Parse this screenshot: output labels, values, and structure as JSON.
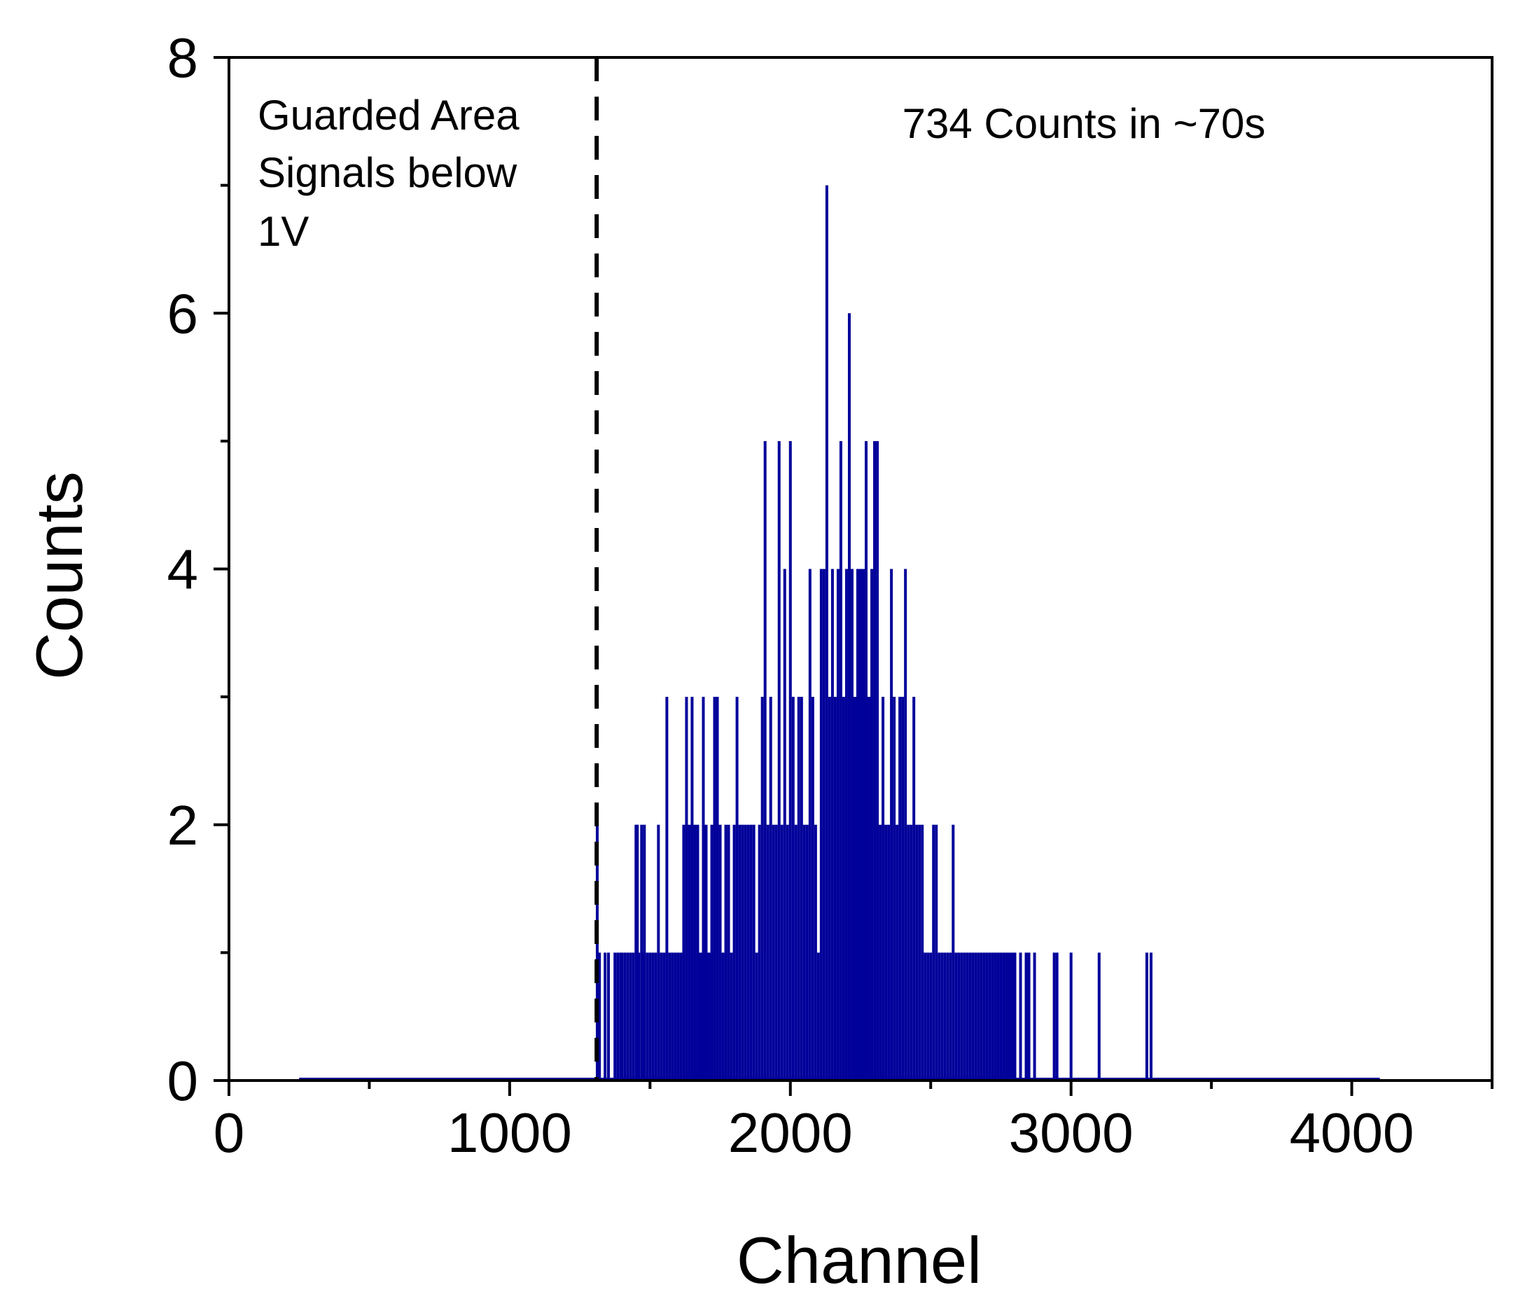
{
  "chart_data": {
    "type": "bar",
    "title": "",
    "xlabel": "Channel",
    "ylabel": "Counts",
    "xlim": [
      0,
      4500
    ],
    "ylim": [
      0,
      8
    ],
    "xticks": [
      "0",
      "1000",
      "2000",
      "3000",
      "4000"
    ],
    "yticks": [
      "0",
      "2",
      "4",
      "6",
      "8"
    ],
    "grid": false,
    "legend": "none",
    "series_color": "#00009A",
    "annotations": {
      "guarded_lines": [
        "Guarded Area",
        "Signals below",
        "1V"
      ],
      "total": "734 Counts in ~70s"
    },
    "threshold_channel": 1310,
    "baseline_range": [
      250,
      4100
    ],
    "series": [
      {
        "x": [
          1312,
          1315,
          1320,
          1330,
          1340,
          1352,
          1365,
          1375,
          1385,
          1395,
          1400,
          1410,
          1420,
          1430,
          1440,
          1450,
          1455,
          1460,
          1470,
          1475,
          1480,
          1490,
          1500,
          1510,
          1520,
          1530,
          1540,
          1550,
          1560,
          1570,
          1580,
          1590,
          1600,
          1610,
          1620,
          1630,
          1640,
          1650,
          1660,
          1670,
          1680,
          1690,
          1700,
          1710,
          1720,
          1730,
          1740,
          1750,
          1760,
          1770,
          1780,
          1790,
          1800,
          1810,
          1820,
          1830,
          1840,
          1850,
          1860,
          1870,
          1880,
          1890,
          1900,
          1910,
          1920,
          1930,
          1940,
          1950,
          1960,
          1970,
          1980,
          1990,
          2000,
          2010,
          2020,
          2030,
          2040,
          2050,
          2060,
          2070,
          2080,
          2090,
          2100,
          2110,
          2120,
          2130,
          2140,
          2150,
          2160,
          2170,
          2180,
          2190,
          2200,
          2210,
          2220,
          2230,
          2240,
          2250,
          2260,
          2270,
          2280,
          2290,
          2300,
          2310,
          2320,
          2330,
          2340,
          2350,
          2360,
          2370,
          2380,
          2390,
          2400,
          2410,
          2420,
          2430,
          2440,
          2450,
          2460,
          2470,
          2480,
          2490,
          2500,
          2510,
          2520,
          2530,
          2540,
          2550,
          2560,
          2570,
          2580,
          2590,
          2600,
          2610,
          2620,
          2630,
          2640,
          2650,
          2660,
          2670,
          2680,
          2690,
          2700,
          2710,
          2720,
          2730,
          2740,
          2750,
          2760,
          2770,
          2780,
          2790,
          2800,
          2820,
          2840,
          2850,
          2870,
          2940,
          2950,
          3000,
          3100,
          3270,
          3285
        ],
        "values": [
          2,
          1,
          1,
          0,
          1,
          1,
          0,
          1,
          1,
          1,
          1,
          1,
          1,
          1,
          1,
          2,
          2,
          1,
          2,
          1,
          2,
          1,
          1,
          1,
          1,
          2,
          1,
          1,
          3,
          1,
          1,
          1,
          1,
          1,
          2,
          3,
          2,
          3,
          2,
          2,
          1,
          3,
          2,
          1,
          2,
          3,
          3,
          2,
          1,
          2,
          2,
          1,
          2,
          3,
          2,
          2,
          2,
          2,
          2,
          2,
          1,
          2,
          3,
          5,
          2,
          3,
          2,
          2,
          5,
          2,
          4,
          2,
          5,
          3,
          2,
          3,
          3,
          2,
          2,
          4,
          3,
          2,
          1,
          4,
          4,
          7,
          3,
          4,
          3,
          4,
          5,
          3,
          4,
          6,
          4,
          3,
          4,
          4,
          4,
          5,
          3,
          4,
          5,
          5,
          2,
          3,
          2,
          2,
          4,
          3,
          2,
          3,
          3,
          4,
          2,
          2,
          3,
          2,
          2,
          2,
          1,
          1,
          1,
          2,
          2,
          1,
          1,
          1,
          1,
          1,
          2,
          1,
          1,
          1,
          1,
          1,
          1,
          1,
          1,
          1,
          1,
          1,
          1,
          1,
          1,
          1,
          1,
          1,
          1,
          1,
          1,
          1,
          1,
          1,
          1,
          1,
          1,
          1,
          1,
          1,
          1,
          1,
          1
        ]
      }
    ]
  }
}
